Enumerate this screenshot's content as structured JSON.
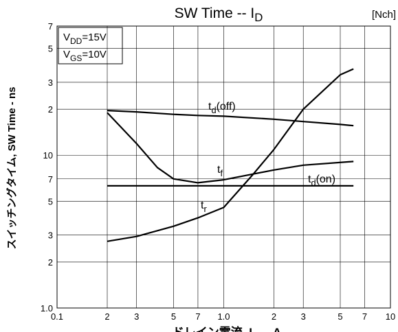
{
  "chart_data": {
    "type": "line",
    "title": {
      "main": "SW Time  --  I",
      "sub": "D"
    },
    "tag": "[Nch]",
    "conditions": [
      {
        "main": "V",
        "sub": "DD",
        "rest": "=15V"
      },
      {
        "main": "V",
        "sub": "GS",
        "rest": "=10V"
      }
    ],
    "xlabel": {
      "main": "ドレイン電流, I",
      "sub": "D",
      "rest": " -- A"
    },
    "ylabel": "スイッチングタイム, SW Time - ns",
    "xscale": "log",
    "yscale": "log",
    "grid": true,
    "color": "#000000",
    "xlim": [
      0.1,
      10
    ],
    "ylim": [
      1,
      70
    ],
    "xticks": [
      0.1,
      {
        "value": 0.2,
        "label": "2"
      },
      {
        "value": 0.3,
        "label": "3"
      },
      {
        "value": 0.5,
        "label": "5"
      },
      {
        "value": 0.7,
        "label": "7"
      },
      {
        "value": 1,
        "label": "1.0"
      },
      2,
      3,
      5,
      7,
      10
    ],
    "yticks": [
      {
        "value": 1,
        "label": "1.0"
      },
      2,
      3,
      5,
      7,
      10,
      {
        "value": 20,
        "label": "2"
      },
      {
        "value": 30,
        "label": "3"
      },
      {
        "value": 50,
        "label": "5"
      },
      {
        "value": 70,
        "label": "7"
      }
    ],
    "series": [
      {
        "label": {
          "main": "t",
          "sub": "d",
          "rest": "(off)"
        },
        "x": [
          0.2,
          0.3,
          0.5,
          0.7,
          1,
          2,
          3,
          5,
          6
        ],
        "values": [
          19.6,
          19.2,
          18.5,
          18.2,
          18,
          17.2,
          16.6,
          15.9,
          15.6
        ]
      },
      {
        "label": {
          "main": "t",
          "sub": "f",
          "rest": ""
        },
        "x": [
          0.2,
          0.3,
          0.4,
          0.5,
          0.7,
          1,
          2,
          3,
          6
        ],
        "values": [
          19,
          11.9,
          8.3,
          7,
          6.6,
          6.9,
          8,
          8.6,
          9.1
        ]
      },
      {
        "label": {
          "main": "t",
          "sub": "d",
          "rest": "(on)"
        },
        "x": [
          0.2,
          6
        ],
        "values": [
          6.3,
          6.3
        ]
      },
      {
        "label": {
          "main": "t",
          "sub": "r",
          "rest": ""
        },
        "x": [
          0.2,
          0.3,
          0.5,
          0.7,
          1,
          1.5,
          2,
          3,
          5,
          6
        ],
        "values": [
          2.73,
          2.94,
          3.43,
          3.89,
          4.55,
          7.5,
          10.9,
          20,
          33.6,
          36.7
        ]
      }
    ]
  }
}
